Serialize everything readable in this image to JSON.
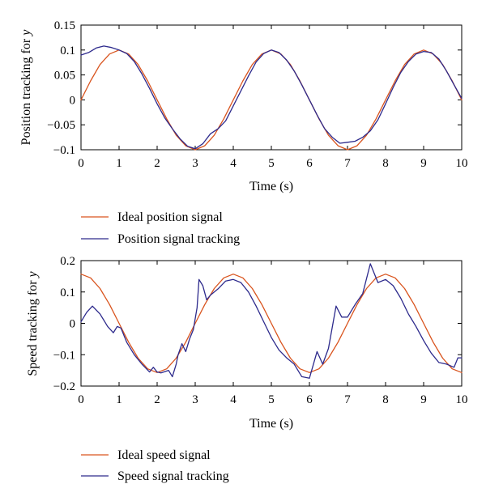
{
  "colors": {
    "ideal": "#d9541e",
    "tracking": "#2d2a8c"
  },
  "chart_data": [
    {
      "type": "line",
      "xlabel": "Time (s)",
      "ylabel": "Position tracking for ",
      "ylabel_var": "y",
      "xlim": [
        0,
        10
      ],
      "ylim": [
        -0.1,
        0.15
      ],
      "xticks": [
        0,
        1,
        2,
        3,
        4,
        5,
        6,
        7,
        8,
        9,
        10
      ],
      "xtick_labels": [
        "0",
        "1",
        "2",
        "3",
        "4",
        "5",
        "6",
        "7",
        "8",
        "9",
        "10"
      ],
      "yticks": [
        0.15,
        0.1,
        0.05,
        0,
        -0.05,
        -0.1
      ],
      "ytick_labels": [
        "0.15",
        "0.1",
        "0.05",
        "0",
        "−0.05",
        "−0.1"
      ],
      "legend_position": "below",
      "series": [
        {
          "name": "Ideal position signal",
          "color_key": "ideal",
          "x": [
            0,
            0.25,
            0.5,
            0.75,
            1,
            1.25,
            1.5,
            1.75,
            2,
            2.25,
            2.5,
            2.75,
            3,
            3.25,
            3.5,
            3.75,
            4,
            4.25,
            4.5,
            4.75,
            5,
            5.25,
            5.5,
            5.75,
            6,
            6.25,
            6.5,
            6.75,
            7,
            7.25,
            7.5,
            7.75,
            8,
            8.25,
            8.5,
            8.75,
            9,
            9.25,
            9.5,
            9.75,
            10
          ],
          "y": [
            0,
            0.038,
            0.071,
            0.092,
            0.1,
            0.092,
            0.071,
            0.038,
            0,
            -0.038,
            -0.071,
            -0.092,
            -0.1,
            -0.092,
            -0.071,
            -0.038,
            0,
            0.038,
            0.071,
            0.092,
            0.1,
            0.092,
            0.071,
            0.038,
            0,
            -0.038,
            -0.071,
            -0.092,
            -0.1,
            -0.092,
            -0.071,
            -0.038,
            0,
            0.038,
            0.071,
            0.092,
            0.1,
            0.092,
            0.071,
            0.038,
            0
          ]
        },
        {
          "name": "Position signal tracking",
          "color_key": "tracking",
          "x": [
            0,
            0.2,
            0.4,
            0.6,
            0.8,
            1.0,
            1.2,
            1.4,
            1.6,
            1.8,
            2.0,
            2.2,
            2.4,
            2.6,
            2.8,
            3.0,
            3.2,
            3.4,
            3.6,
            3.8,
            4.0,
            4.2,
            4.4,
            4.6,
            4.8,
            5.0,
            5.2,
            5.4,
            5.6,
            5.8,
            6.0,
            6.2,
            6.4,
            6.6,
            6.8,
            7.0,
            7.2,
            7.4,
            7.6,
            7.8,
            8.0,
            8.2,
            8.4,
            8.6,
            8.8,
            9.0,
            9.2,
            9.4,
            9.6,
            9.8,
            10
          ],
          "y": [
            0.09,
            0.095,
            0.104,
            0.108,
            0.105,
            0.1,
            0.093,
            0.077,
            0.052,
            0.023,
            -0.008,
            -0.036,
            -0.058,
            -0.078,
            -0.093,
            -0.098,
            -0.088,
            -0.068,
            -0.058,
            -0.042,
            -0.012,
            0.018,
            0.048,
            0.076,
            0.093,
            0.1,
            0.095,
            0.08,
            0.058,
            0.03,
            0.0,
            -0.03,
            -0.058,
            -0.075,
            -0.087,
            -0.085,
            -0.083,
            -0.075,
            -0.062,
            -0.04,
            -0.008,
            0.025,
            0.055,
            0.077,
            0.092,
            0.097,
            0.095,
            0.082,
            0.058,
            0.03,
            0.003
          ]
        }
      ]
    },
    {
      "type": "line",
      "xlabel": "Time (s)",
      "ylabel": "Speed tracking for ",
      "ylabel_var": "y",
      "xlim": [
        0,
        10
      ],
      "ylim": [
        -0.2,
        0.2
      ],
      "xticks": [
        0,
        1,
        2,
        3,
        4,
        5,
        6,
        7,
        8,
        9,
        10
      ],
      "xtick_labels": [
        "0",
        "1",
        "2",
        "3",
        "4",
        "5",
        "6",
        "7",
        "8",
        "9",
        "10"
      ],
      "yticks": [
        0.2,
        0.1,
        0,
        -0.1,
        -0.2
      ],
      "ytick_labels": [
        "0.2",
        "0.1",
        "0",
        "−0.1",
        "−0.2"
      ],
      "legend_position": "below",
      "series": [
        {
          "name": "Ideal speed signal",
          "color_key": "ideal",
          "x": [
            0,
            0.25,
            0.5,
            0.75,
            1,
            1.25,
            1.5,
            1.75,
            2,
            2.25,
            2.5,
            2.75,
            3,
            3.25,
            3.5,
            3.75,
            4,
            4.25,
            4.5,
            4.75,
            5,
            5.25,
            5.5,
            5.75,
            6,
            6.25,
            6.5,
            6.75,
            7,
            7.25,
            7.5,
            7.75,
            8,
            8.25,
            8.5,
            8.75,
            9,
            9.25,
            9.5,
            9.75,
            10
          ],
          "y": [
            0.157,
            0.145,
            0.111,
            0.06,
            0,
            -0.06,
            -0.111,
            -0.145,
            -0.157,
            -0.145,
            -0.111,
            -0.06,
            0,
            0.06,
            0.111,
            0.145,
            0.157,
            0.145,
            0.111,
            0.06,
            0,
            -0.06,
            -0.111,
            -0.145,
            -0.157,
            -0.145,
            -0.111,
            -0.06,
            0,
            0.06,
            0.111,
            0.145,
            0.157,
            0.145,
            0.111,
            0.06,
            0,
            -0.06,
            -0.111,
            -0.145,
            -0.157
          ]
        },
        {
          "name": "Speed signal tracking",
          "color_key": "tracking",
          "x": [
            0,
            0.15,
            0.3,
            0.5,
            0.7,
            0.85,
            0.95,
            1.05,
            1.2,
            1.4,
            1.6,
            1.8,
            1.9,
            2.0,
            2.1,
            2.3,
            2.4,
            2.5,
            2.55,
            2.65,
            2.75,
            2.85,
            2.95,
            3.05,
            3.1,
            3.2,
            3.3,
            3.4,
            3.6,
            3.8,
            4.0,
            4.2,
            4.4,
            4.6,
            4.8,
            5.0,
            5.2,
            5.4,
            5.6,
            5.8,
            6.0,
            6.2,
            6.35,
            6.5,
            6.7,
            6.85,
            7.0,
            7.2,
            7.4,
            7.6,
            7.8,
            8.0,
            8.2,
            8.4,
            8.6,
            8.8,
            9.0,
            9.2,
            9.4,
            9.6,
            9.8,
            9.9,
            10.0
          ],
          "y": [
            0.005,
            0.035,
            0.055,
            0.03,
            -0.01,
            -0.03,
            -0.01,
            -0.015,
            -0.06,
            -0.1,
            -0.13,
            -0.155,
            -0.14,
            -0.155,
            -0.158,
            -0.15,
            -0.17,
            -0.13,
            -0.1,
            -0.065,
            -0.09,
            -0.05,
            -0.02,
            0.05,
            0.14,
            0.12,
            0.075,
            0.09,
            0.11,
            0.135,
            0.14,
            0.13,
            0.1,
            0.055,
            0.005,
            -0.045,
            -0.085,
            -0.11,
            -0.13,
            -0.17,
            -0.175,
            -0.09,
            -0.13,
            -0.08,
            0.055,
            0.02,
            0.02,
            0.06,
            0.095,
            0.19,
            0.13,
            0.14,
            0.12,
            0.08,
            0.03,
            -0.01,
            -0.055,
            -0.095,
            -0.125,
            -0.13,
            -0.14,
            -0.11,
            -0.11
          ]
        }
      ]
    }
  ]
}
